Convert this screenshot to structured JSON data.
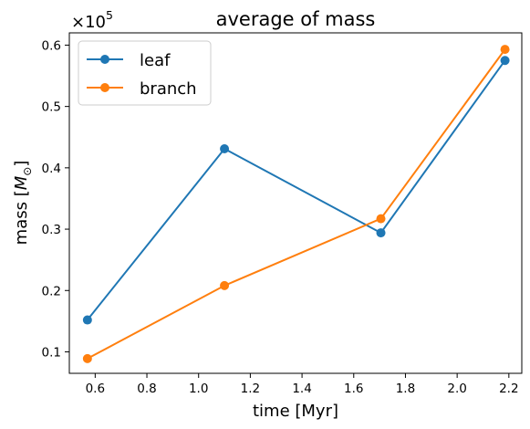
{
  "chart_data": {
    "type": "line",
    "title": "average of mass",
    "xlabel": "time [Myr]",
    "ylabel": "mass [",
    "ylabel_symbol": "M",
    "ylabel_subscript": "⊙",
    "ylabel_close": "]",
    "y_multiplier_base": "×10",
    "y_multiplier_exp": "5",
    "xlim": [
      0.5,
      2.25
    ],
    "ylim": [
      0.065,
      0.62
    ],
    "xticks": [
      0.6,
      0.8,
      1.0,
      1.2,
      1.4,
      1.6,
      1.8,
      2.0,
      2.2
    ],
    "yticks": [
      0.1,
      0.2,
      0.3,
      0.4,
      0.5,
      0.6
    ],
    "grid": false,
    "legend_position": "upper-left",
    "series": [
      {
        "name": "leaf",
        "color": "#1f77b4",
        "marker": "circle",
        "x": [
          0.57,
          1.1,
          1.705,
          2.185
        ],
        "y": [
          0.152,
          0.431,
          0.294,
          0.575
        ]
      },
      {
        "name": "branch",
        "color": "#ff7f0e",
        "marker": "circle",
        "x": [
          0.57,
          1.1,
          1.705,
          2.185
        ],
        "y": [
          0.089,
          0.208,
          0.317,
          0.593
        ]
      }
    ]
  }
}
